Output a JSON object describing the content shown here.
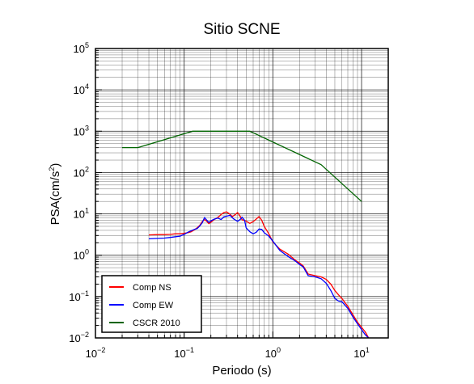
{
  "chart_data": {
    "type": "line",
    "title": "Sitio SCNE",
    "xlabel": "Periodo (s)",
    "ylabel": {
      "base": "PSA(cm/s",
      "sup": "2",
      "close": ")"
    },
    "x_scale": "log",
    "y_scale": "log",
    "xlim": [
      0.01,
      20
    ],
    "ylim": [
      0.01,
      100000
    ],
    "grid": true,
    "legend_position": "bottom-left",
    "x_ticks": [
      {
        "value": 0.01,
        "base": "10",
        "exp": "−2"
      },
      {
        "value": 0.1,
        "base": "10",
        "exp": "−1"
      },
      {
        "value": 1,
        "base": "10",
        "exp": "0"
      },
      {
        "value": 10,
        "base": "10",
        "exp": "1"
      }
    ],
    "y_ticks": [
      {
        "value": 0.01,
        "base": "10",
        "exp": "−2"
      },
      {
        "value": 0.1,
        "base": "10",
        "exp": "−1"
      },
      {
        "value": 1,
        "base": "10",
        "exp": "0"
      },
      {
        "value": 10,
        "base": "10",
        "exp": "1"
      },
      {
        "value": 100,
        "base": "10",
        "exp": "2"
      },
      {
        "value": 1000,
        "base": "10",
        "exp": "3"
      },
      {
        "value": 10000,
        "base": "10",
        "exp": "4"
      },
      {
        "value": 100000,
        "base": "10",
        "exp": "5"
      }
    ],
    "series": [
      {
        "name": "Comp NS",
        "color": "#ff0000",
        "points": [
          [
            0.04,
            3.1
          ],
          [
            0.05,
            3.15
          ],
          [
            0.06,
            3.15
          ],
          [
            0.07,
            3.2
          ],
          [
            0.08,
            3.3
          ],
          [
            0.09,
            3.3
          ],
          [
            0.1,
            3.4
          ],
          [
            0.11,
            3.5
          ],
          [
            0.12,
            3.7
          ],
          [
            0.13,
            4.1
          ],
          [
            0.14,
            4.6
          ],
          [
            0.15,
            5.3
          ],
          [
            0.16,
            6.5
          ],
          [
            0.17,
            7.3
          ],
          [
            0.18,
            6.6
          ],
          [
            0.19,
            5.8
          ],
          [
            0.2,
            6.3
          ],
          [
            0.22,
            7.4
          ],
          [
            0.24,
            8.2
          ],
          [
            0.26,
            9.6
          ],
          [
            0.28,
            10.8
          ],
          [
            0.3,
            11.2
          ],
          [
            0.32,
            10.2
          ],
          [
            0.35,
            8.6
          ],
          [
            0.38,
            9.7
          ],
          [
            0.4,
            10.8
          ],
          [
            0.43,
            8.6
          ],
          [
            0.45,
            7.2
          ],
          [
            0.5,
            6.7
          ],
          [
            0.55,
            5.9
          ],
          [
            0.6,
            6.5
          ],
          [
            0.65,
            7.5
          ],
          [
            0.7,
            8.6
          ],
          [
            0.75,
            7.0
          ],
          [
            0.8,
            5.0
          ],
          [
            0.9,
            3.3
          ],
          [
            1.0,
            2.1
          ],
          [
            1.2,
            1.4
          ],
          [
            1.5,
            1.05
          ],
          [
            1.8,
            0.75
          ],
          [
            2.0,
            0.65
          ],
          [
            2.2,
            0.55
          ],
          [
            2.5,
            0.35
          ],
          [
            3.0,
            0.32
          ],
          [
            3.5,
            0.3
          ],
          [
            4.0,
            0.26
          ],
          [
            4.5,
            0.2
          ],
          [
            5.0,
            0.14
          ],
          [
            5.5,
            0.11
          ],
          [
            6.0,
            0.09
          ],
          [
            7.0,
            0.058
          ],
          [
            8.0,
            0.036
          ],
          [
            9.0,
            0.024
          ],
          [
            10.0,
            0.018
          ],
          [
            11.0,
            0.014
          ],
          [
            12.0,
            0.01
          ]
        ]
      },
      {
        "name": "Comp EW",
        "color": "#0000ff",
        "points": [
          [
            0.04,
            2.5
          ],
          [
            0.05,
            2.55
          ],
          [
            0.06,
            2.6
          ],
          [
            0.07,
            2.7
          ],
          [
            0.08,
            2.8
          ],
          [
            0.09,
            2.9
          ],
          [
            0.1,
            3.2
          ],
          [
            0.11,
            3.6
          ],
          [
            0.12,
            3.9
          ],
          [
            0.13,
            4.2
          ],
          [
            0.14,
            4.4
          ],
          [
            0.15,
            5.1
          ],
          [
            0.16,
            6.1
          ],
          [
            0.17,
            8.2
          ],
          [
            0.18,
            7.0
          ],
          [
            0.19,
            6.2
          ],
          [
            0.2,
            6.8
          ],
          [
            0.22,
            7.5
          ],
          [
            0.24,
            7.9
          ],
          [
            0.26,
            7.3
          ],
          [
            0.28,
            8.4
          ],
          [
            0.3,
            8.8
          ],
          [
            0.33,
            9.2
          ],
          [
            0.36,
            7.6
          ],
          [
            0.4,
            6.6
          ],
          [
            0.43,
            7.4
          ],
          [
            0.45,
            8.3
          ],
          [
            0.48,
            7.0
          ],
          [
            0.5,
            4.6
          ],
          [
            0.55,
            3.7
          ],
          [
            0.6,
            3.3
          ],
          [
            0.65,
            3.6
          ],
          [
            0.7,
            4.3
          ],
          [
            0.75,
            4.2
          ],
          [
            0.8,
            3.5
          ],
          [
            0.9,
            2.9
          ],
          [
            1.0,
            2.2
          ],
          [
            1.2,
            1.3
          ],
          [
            1.5,
            0.92
          ],
          [
            1.8,
            0.72
          ],
          [
            2.0,
            0.6
          ],
          [
            2.2,
            0.52
          ],
          [
            2.5,
            0.32
          ],
          [
            3.0,
            0.3
          ],
          [
            3.5,
            0.27
          ],
          [
            4.0,
            0.21
          ],
          [
            4.5,
            0.14
          ],
          [
            5.0,
            0.09
          ],
          [
            5.5,
            0.078
          ],
          [
            6.0,
            0.075
          ],
          [
            7.0,
            0.052
          ],
          [
            8.0,
            0.032
          ],
          [
            9.0,
            0.022
          ],
          [
            10.0,
            0.016
          ],
          [
            11.0,
            0.012
          ],
          [
            12.0,
            0.01
          ]
        ]
      },
      {
        "name": "CSCR 2010",
        "color": "#006400",
        "points": [
          [
            0.02,
            400
          ],
          [
            0.03,
            400
          ],
          [
            0.125,
            1000
          ],
          [
            0.55,
            1000
          ],
          [
            3.5,
            155
          ],
          [
            10.0,
            20
          ]
        ]
      }
    ]
  }
}
